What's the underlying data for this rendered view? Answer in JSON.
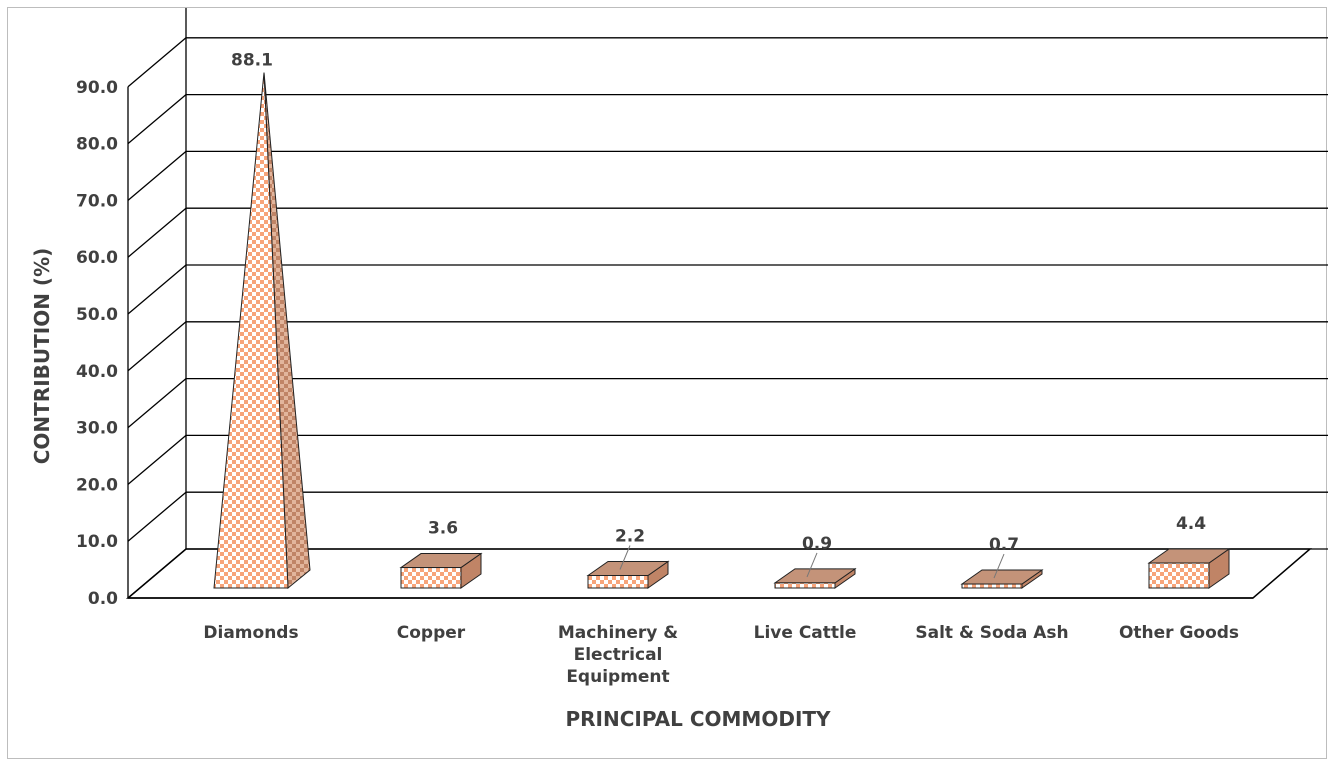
{
  "chart_data": {
    "type": "bar",
    "style": "3d-pyramid-and-box",
    "categories": [
      "Diamonds",
      "Copper",
      "Machinery & Electrical Equipment",
      "Live Cattle",
      "Salt & Soda Ash",
      "Other Goods"
    ],
    "category_lines": [
      [
        "Diamonds"
      ],
      [
        "Copper"
      ],
      [
        "Machinery &",
        "Electrical",
        "Equipment"
      ],
      [
        "Live Cattle"
      ],
      [
        "Salt & Soda Ash"
      ],
      [
        "Other Goods"
      ]
    ],
    "values": [
      88.1,
      3.6,
      2.2,
      0.9,
      0.7,
      4.4
    ],
    "data_labels": [
      "88.1",
      "3.6",
      "2.2",
      "0.9",
      "0.7",
      "4.4"
    ],
    "xlabel": "PRINCIPAL COMMODITY",
    "ylabel": "CONTRIBUTION (%)",
    "ylim": [
      0,
      90
    ],
    "yticks": [
      "0.0",
      "10.0",
      "20.0",
      "30.0",
      "40.0",
      "50.0",
      "60.0",
      "70.0",
      "80.0",
      "90.0"
    ],
    "grid": true,
    "legend": "none",
    "colors": {
      "front": "#f7a47a",
      "checker": "#ffffff",
      "side": "#c08466",
      "top": "#c49379",
      "grid": "#000000",
      "floor": "#ffffff",
      "text": "#404040"
    }
  }
}
